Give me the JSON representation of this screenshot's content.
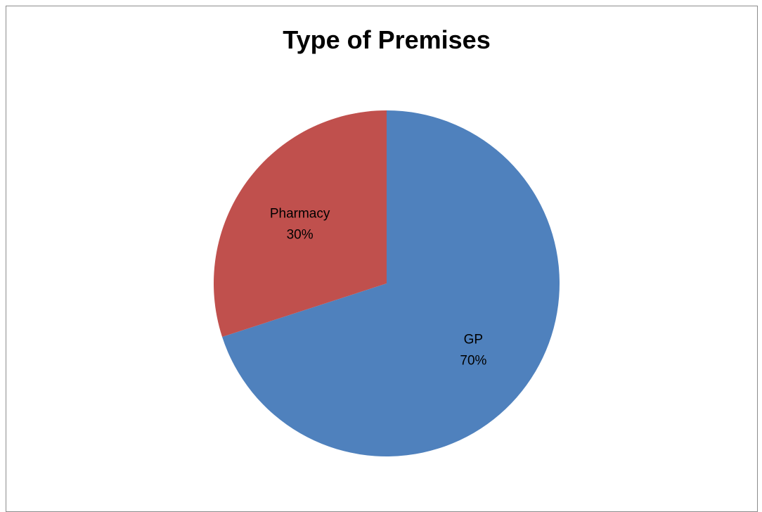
{
  "chart_data": {
    "type": "pie",
    "title": "Type of Premises",
    "slices": [
      {
        "label": "GP",
        "value": 70,
        "percent_label": "70%",
        "color": "#4F81BD"
      },
      {
        "label": "Pharmacy",
        "value": 30,
        "percent_label": "30%",
        "color": "#C0504D"
      }
    ],
    "start_angle_deg": 0,
    "direction": "clockwise",
    "legend": "none"
  }
}
